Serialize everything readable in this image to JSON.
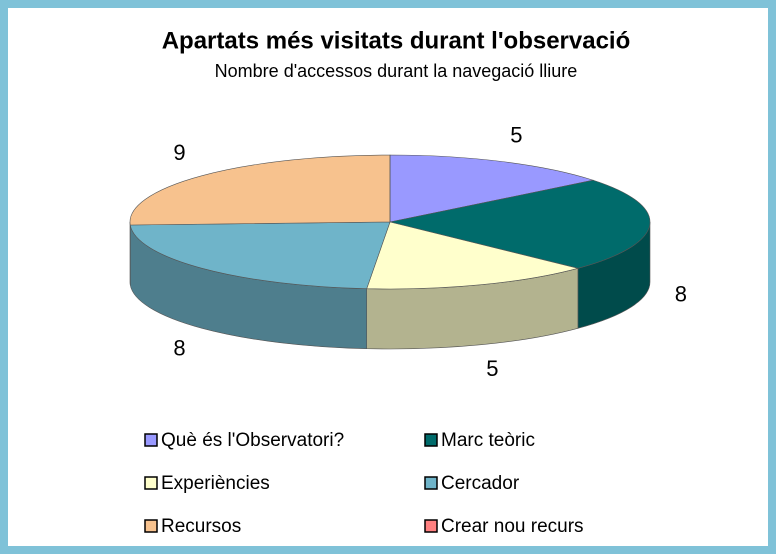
{
  "chart_data": {
    "type": "pie3d",
    "title": "Apartats més visitats durant l'observació",
    "subtitle": "Nombre d'accessos durant la navegació lliure",
    "categories": [
      "Què és l'Observatori?",
      "Marc teòric",
      "Experiències",
      "Cercador",
      "Recursos",
      "Crear nou recurs"
    ],
    "values": [
      5,
      8,
      5,
      8,
      9,
      0
    ],
    "colors": [
      "#9999ff",
      "#006b6b",
      "#ffffcc",
      "#6fb4c9",
      "#f7c28e",
      "#ff8080"
    ]
  }
}
